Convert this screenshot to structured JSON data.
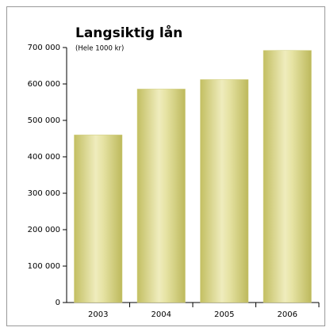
{
  "chart_data": {
    "type": "bar",
    "title": "Langsiktig lån",
    "subtitle": "(Hele 1000 kr)",
    "categories": [
      "2003",
      "2004",
      "2005",
      "2006"
    ],
    "values": [
      460000,
      586000,
      612000,
      692000
    ],
    "color": "#cdca72",
    "ylim": [
      0,
      700000
    ],
    "yticks": [
      0,
      {
        "value": 100000,
        "label": "100 000"
      },
      {
        "value": 200000,
        "label": "200 000"
      },
      {
        "value": 300000,
        "label": "300 000"
      },
      {
        "value": 400000,
        "label": "400 000"
      },
      {
        "value": 500000,
        "label": "500 000"
      },
      {
        "value": 600000,
        "label": "600 000"
      },
      {
        "value": 700000,
        "label": "700 000"
      }
    ],
    "grid": false
  }
}
